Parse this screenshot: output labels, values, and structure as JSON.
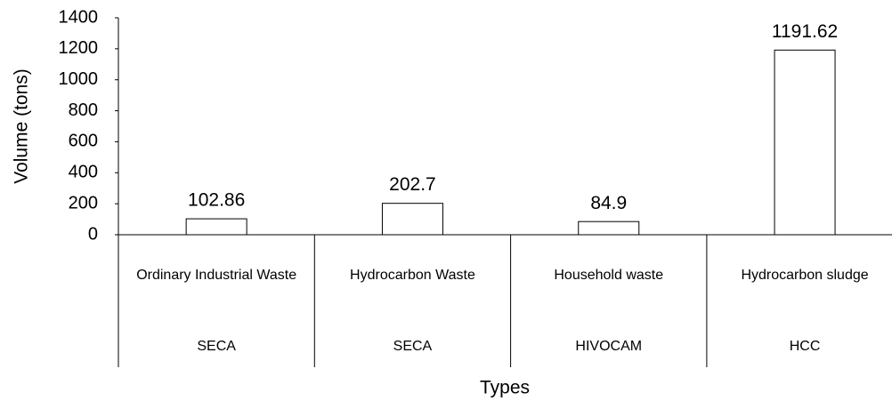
{
  "chart_data": {
    "type": "bar",
    "x_label": "Types",
    "y_label": "Volume (tons)",
    "categories": [
      "Ordinary Industrial Waste",
      "Hydrocarbon Waste",
      "Household waste",
      "Hydrocarbon sludge"
    ],
    "groups": [
      "SECA",
      "SECA",
      "HIVOCAM",
      "HCC"
    ],
    "values": [
      102.86,
      202.7,
      84.9,
      1191.62
    ],
    "color": "#ffffff",
    "edge_color": "#000000",
    "ylim": [
      0,
      1400
    ],
    "yticks": [
      0,
      200,
      400,
      600,
      800,
      1000,
      1200,
      1400
    ],
    "grid": false
  }
}
